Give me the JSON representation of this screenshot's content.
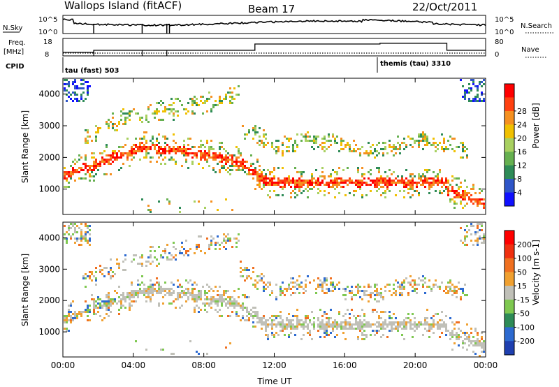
{
  "header": {
    "station": "Wallops Island (fitACF)",
    "beam": "Beam 17",
    "date": "22/Oct/2011"
  },
  "panels": {
    "nsky_label": "N.Sky",
    "nsky_ticks": [
      "10^5",
      "10^0"
    ],
    "nsearch_label": "N.Search",
    "nsearch_ticks": [
      "10^5",
      "10^0"
    ],
    "freq_label_top": "Freq.",
    "freq_label_bottom": "[MHz]",
    "freq_ticks": [
      "18",
      "8"
    ],
    "nave_label": "Nave",
    "nave_ticks": [
      "80",
      "0"
    ],
    "cpid_label": "CPID",
    "cpid_1": "tau (fast) 503",
    "cpid_2": "themis (tau) 3310"
  },
  "chart_data": [
    {
      "type": "heatmap",
      "name": "power",
      "ylabel": "Slant Range [km]",
      "xlabel": "Time UT",
      "ylim": [
        200,
        4500
      ],
      "yticks": [
        "1000",
        "2000",
        "3000",
        "4000"
      ],
      "xticks": [
        "00:00",
        "04:00",
        "08:00",
        "12:00",
        "16:00",
        "20:00",
        "00:00"
      ],
      "colorbar": {
        "label": "Power [dB]",
        "ticks": [
          "4",
          "8",
          "12",
          "16",
          "20",
          "24",
          "28"
        ],
        "colors": [
          "#1010ff",
          "#2f56c8",
          "#2e8b57",
          "#66b050",
          "#a8d060",
          "#f0c000",
          "#f59020",
          "#ff4010",
          "#ff0000"
        ]
      }
    },
    {
      "type": "heatmap",
      "name": "velocity",
      "ylabel": "Slant Range [km]",
      "xlabel": "Time UT",
      "ylim": [
        200,
        4500
      ],
      "yticks": [
        "1000",
        "2000",
        "3000",
        "4000"
      ],
      "xticks": [
        "00:00",
        "04:00",
        "08:00",
        "12:00",
        "16:00",
        "20:00",
        "00:00"
      ],
      "colorbar": {
        "label": "Velocity [m s-1]",
        "ticks": [
          "200",
          "100",
          "50",
          "15",
          "-15",
          "-50",
          "-100",
          "-200"
        ],
        "colors": [
          "#1e3fb0",
          "#2d6ad0",
          "#2e8b57",
          "#7ec850",
          "#c0c0b8",
          "#f0a030",
          "#f07020",
          "#f03010",
          "#ff0000"
        ]
      }
    }
  ],
  "axes": {
    "xlabel": "Time UT"
  }
}
